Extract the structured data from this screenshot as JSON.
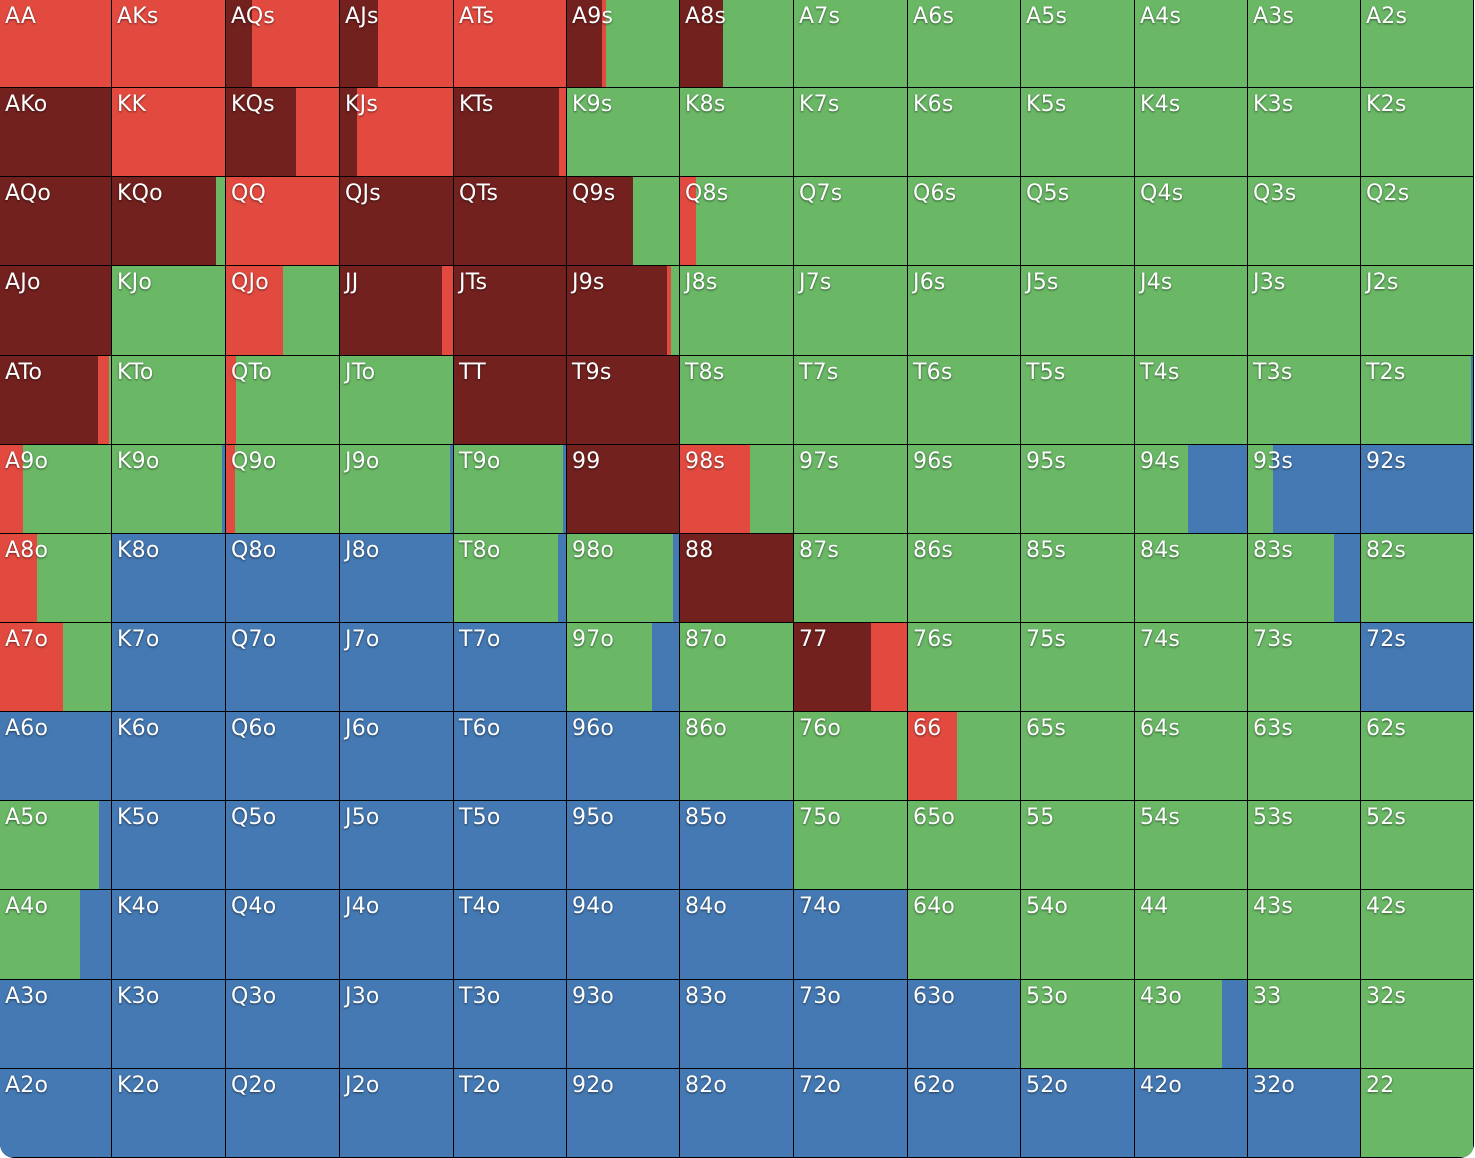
{
  "colors": {
    "raise": "#E24A40",
    "allin": "#73211F",
    "call": "#6AB866",
    "fold": "#4579B3"
  },
  "rows": [
    [
      {
        "hand": "AA",
        "mix": {
          "raise": 100
        }
      },
      {
        "hand": "AKs",
        "mix": {
          "raise": 100
        }
      },
      {
        "hand": "AQs",
        "mix": {
          "allin": 23,
          "raise": 77
        }
      },
      {
        "hand": "AJs",
        "mix": {
          "allin": 34,
          "raise": 66
        }
      },
      {
        "hand": "ATs",
        "mix": {
          "raise": 100
        }
      },
      {
        "hand": "A9s",
        "mix": {
          "allin": 31,
          "raise": 4,
          "call": 65
        }
      },
      {
        "hand": "A8s",
        "mix": {
          "allin": 38,
          "call": 62
        }
      },
      {
        "hand": "A7s",
        "mix": {
          "call": 100
        }
      },
      {
        "hand": "A6s",
        "mix": {
          "call": 100
        }
      },
      {
        "hand": "A5s",
        "mix": {
          "call": 100
        }
      },
      {
        "hand": "A4s",
        "mix": {
          "call": 100
        }
      },
      {
        "hand": "A3s",
        "mix": {
          "call": 100
        }
      },
      {
        "hand": "A2s",
        "mix": {
          "call": 100
        }
      }
    ],
    [
      {
        "hand": "AKo",
        "mix": {
          "allin": 100
        }
      },
      {
        "hand": "KK",
        "mix": {
          "raise": 100
        }
      },
      {
        "hand": "KQs",
        "mix": {
          "allin": 62,
          "raise": 38
        }
      },
      {
        "hand": "KJs",
        "mix": {
          "allin": 15,
          "raise": 85
        }
      },
      {
        "hand": "KTs",
        "mix": {
          "allin": 94,
          "raise": 6
        }
      },
      {
        "hand": "K9s",
        "mix": {
          "call": 100
        }
      },
      {
        "hand": "K8s",
        "mix": {
          "call": 100
        }
      },
      {
        "hand": "K7s",
        "mix": {
          "call": 100
        }
      },
      {
        "hand": "K6s",
        "mix": {
          "call": 100
        }
      },
      {
        "hand": "K5s",
        "mix": {
          "call": 100
        }
      },
      {
        "hand": "K4s",
        "mix": {
          "call": 100
        }
      },
      {
        "hand": "K3s",
        "mix": {
          "call": 100
        }
      },
      {
        "hand": "K2s",
        "mix": {
          "call": 100
        }
      }
    ],
    [
      {
        "hand": "AQo",
        "mix": {
          "allin": 100
        }
      },
      {
        "hand": "KQo",
        "mix": {
          "allin": 92,
          "call": 8
        }
      },
      {
        "hand": "QQ",
        "mix": {
          "raise": 100
        }
      },
      {
        "hand": "QJs",
        "mix": {
          "allin": 100
        }
      },
      {
        "hand": "QTs",
        "mix": {
          "allin": 100
        }
      },
      {
        "hand": "Q9s",
        "mix": {
          "allin": 59,
          "call": 41
        }
      },
      {
        "hand": "Q8s",
        "mix": {
          "raise": 14,
          "call": 86
        }
      },
      {
        "hand": "Q7s",
        "mix": {
          "call": 100
        }
      },
      {
        "hand": "Q6s",
        "mix": {
          "call": 100
        }
      },
      {
        "hand": "Q5s",
        "mix": {
          "call": 100
        }
      },
      {
        "hand": "Q4s",
        "mix": {
          "call": 100
        }
      },
      {
        "hand": "Q3s",
        "mix": {
          "call": 100
        }
      },
      {
        "hand": "Q2s",
        "mix": {
          "call": 100
        }
      }
    ],
    [
      {
        "hand": "AJo",
        "mix": {
          "allin": 100
        }
      },
      {
        "hand": "KJo",
        "mix": {
          "call": 100
        }
      },
      {
        "hand": "QJo",
        "mix": {
          "raise": 50,
          "call": 50
        }
      },
      {
        "hand": "JJ",
        "mix": {
          "allin": 90,
          "raise": 10
        }
      },
      {
        "hand": "JTs",
        "mix": {
          "allin": 100
        }
      },
      {
        "hand": "J9s",
        "mix": {
          "allin": 89,
          "raise": 4,
          "call": 7
        }
      },
      {
        "hand": "J8s",
        "mix": {
          "call": 100
        }
      },
      {
        "hand": "J7s",
        "mix": {
          "call": 100
        }
      },
      {
        "hand": "J6s",
        "mix": {
          "call": 100
        }
      },
      {
        "hand": "J5s",
        "mix": {
          "call": 100
        }
      },
      {
        "hand": "J4s",
        "mix": {
          "call": 100
        }
      },
      {
        "hand": "J3s",
        "mix": {
          "call": 100
        }
      },
      {
        "hand": "J2s",
        "mix": {
          "call": 100
        }
      }
    ],
    [
      {
        "hand": "ATo",
        "mix": {
          "allin": 88,
          "raise": 10,
          "call": 2
        }
      },
      {
        "hand": "KTo",
        "mix": {
          "call": 100
        }
      },
      {
        "hand": "QTo",
        "mix": {
          "raise": 9,
          "call": 91
        }
      },
      {
        "hand": "JTo",
        "mix": {
          "call": 100
        }
      },
      {
        "hand": "TT",
        "mix": {
          "allin": 100
        }
      },
      {
        "hand": "T9s",
        "mix": {
          "allin": 100
        }
      },
      {
        "hand": "T8s",
        "mix": {
          "call": 100
        }
      },
      {
        "hand": "T7s",
        "mix": {
          "call": 100
        }
      },
      {
        "hand": "T6s",
        "mix": {
          "call": 100
        }
      },
      {
        "hand": "T5s",
        "mix": {
          "call": 100
        }
      },
      {
        "hand": "T4s",
        "mix": {
          "call": 100
        }
      },
      {
        "hand": "T3s",
        "mix": {
          "call": 100
        }
      },
      {
        "hand": "T2s",
        "mix": {
          "call": 98,
          "fold": 2
        }
      }
    ],
    [
      {
        "hand": "A9o",
        "mix": {
          "raise": 21,
          "call": 79
        }
      },
      {
        "hand": "K9o",
        "mix": {
          "call": 97,
          "fold": 3
        }
      },
      {
        "hand": "Q9o",
        "mix": {
          "raise": 8,
          "call": 92
        }
      },
      {
        "hand": "J9o",
        "mix": {
          "call": 97,
          "fold": 3
        }
      },
      {
        "hand": "T9o",
        "mix": {
          "fold": 3,
          "call": 97
        }
      },
      {
        "hand": "99",
        "mix": {
          "allin": 100
        }
      },
      {
        "hand": "98s",
        "mix": {
          "raise": 62,
          "call": 38
        }
      },
      {
        "hand": "97s",
        "mix": {
          "call": 100
        }
      },
      {
        "hand": "96s",
        "mix": {
          "call": 100
        }
      },
      {
        "hand": "95s",
        "mix": {
          "call": 100
        }
      },
      {
        "hand": "94s",
        "mix": {
          "call": 47,
          "fold": 53
        }
      },
      {
        "hand": "93s",
        "mix": {
          "call": 22,
          "fold": 78
        }
      },
      {
        "hand": "92s",
        "mix": {
          "fold": 100
        }
      }
    ],
    [
      {
        "hand": "A8o",
        "mix": {
          "raise": 33,
          "call": 67
        }
      },
      {
        "hand": "K8o",
        "mix": {
          "fold": 100
        }
      },
      {
        "hand": "Q8o",
        "mix": {
          "fold": 100
        }
      },
      {
        "hand": "J8o",
        "mix": {
          "fold": 100
        }
      },
      {
        "hand": "T8o",
        "mix": {
          "call": 93,
          "fold": 7
        }
      },
      {
        "hand": "98o",
        "mix": {
          "fold": 5,
          "call": 95
        }
      },
      {
        "hand": "88",
        "mix": {
          "allin": 100
        }
      },
      {
        "hand": "87s",
        "mix": {
          "call": 100
        }
      },
      {
        "hand": "86s",
        "mix": {
          "call": 100
        }
      },
      {
        "hand": "85s",
        "mix": {
          "call": 100
        }
      },
      {
        "hand": "84s",
        "mix": {
          "call": 100
        }
      },
      {
        "hand": "83s",
        "mix": {
          "call": 77,
          "fold": 23
        }
      },
      {
        "hand": "82s",
        "mix": {
          "call": 100
        }
      }
    ],
    [
      {
        "hand": "A7o",
        "mix": {
          "raise": 57,
          "call": 43
        }
      },
      {
        "hand": "K7o",
        "mix": {
          "fold": 100
        }
      },
      {
        "hand": "Q7o",
        "mix": {
          "fold": 100
        }
      },
      {
        "hand": "J7o",
        "mix": {
          "fold": 100
        }
      },
      {
        "hand": "T7o",
        "mix": {
          "fold": 100
        }
      },
      {
        "hand": "97o",
        "mix": {
          "call": 76,
          "fold": 24
        }
      },
      {
        "hand": "87o",
        "mix": {
          "call": 100
        }
      },
      {
        "hand": "77",
        "mix": {
          "allin": 68,
          "raise": 32
        }
      },
      {
        "hand": "76s",
        "mix": {
          "call": 100
        }
      },
      {
        "hand": "75s",
        "mix": {
          "call": 100
        }
      },
      {
        "hand": "74s",
        "mix": {
          "call": 100
        }
      },
      {
        "hand": "73s",
        "mix": {
          "call": 100
        }
      },
      {
        "hand": "72s",
        "mix": {
          "fold": 100
        }
      }
    ],
    [
      {
        "hand": "A6o",
        "mix": {
          "fold": 100
        }
      },
      {
        "hand": "K6o",
        "mix": {
          "fold": 100
        }
      },
      {
        "hand": "Q6o",
        "mix": {
          "fold": 100
        }
      },
      {
        "hand": "J6o",
        "mix": {
          "fold": 100
        }
      },
      {
        "hand": "T6o",
        "mix": {
          "fold": 100
        }
      },
      {
        "hand": "96o",
        "mix": {
          "fold": 100
        }
      },
      {
        "hand": "86o",
        "mix": {
          "call": 100
        }
      },
      {
        "hand": "76o",
        "mix": {
          "call": 100
        }
      },
      {
        "hand": "66",
        "mix": {
          "raise": 44,
          "call": 56
        }
      },
      {
        "hand": "65s",
        "mix": {
          "call": 100
        }
      },
      {
        "hand": "64s",
        "mix": {
          "call": 100
        }
      },
      {
        "hand": "63s",
        "mix": {
          "call": 100
        }
      },
      {
        "hand": "62s",
        "mix": {
          "call": 100
        }
      }
    ],
    [
      {
        "hand": "A5o",
        "mix": {
          "call": 89,
          "fold": 11
        }
      },
      {
        "hand": "K5o",
        "mix": {
          "fold": 100
        }
      },
      {
        "hand": "Q5o",
        "mix": {
          "fold": 100
        }
      },
      {
        "hand": "J5o",
        "mix": {
          "fold": 100
        }
      },
      {
        "hand": "T5o",
        "mix": {
          "fold": 100
        }
      },
      {
        "hand": "95o",
        "mix": {
          "fold": 100
        }
      },
      {
        "hand": "85o",
        "mix": {
          "fold": 100
        }
      },
      {
        "hand": "75o",
        "mix": {
          "call": 100
        }
      },
      {
        "hand": "65o",
        "mix": {
          "call": 100
        }
      },
      {
        "hand": "55",
        "mix": {
          "call": 100
        }
      },
      {
        "hand": "54s",
        "mix": {
          "call": 100
        }
      },
      {
        "hand": "53s",
        "mix": {
          "call": 100
        }
      },
      {
        "hand": "52s",
        "mix": {
          "call": 100
        }
      }
    ],
    [
      {
        "hand": "A4o",
        "mix": {
          "call": 72,
          "fold": 28
        }
      },
      {
        "hand": "K4o",
        "mix": {
          "fold": 100
        }
      },
      {
        "hand": "Q4o",
        "mix": {
          "fold": 100
        }
      },
      {
        "hand": "J4o",
        "mix": {
          "fold": 100
        }
      },
      {
        "hand": "T4o",
        "mix": {
          "fold": 100
        }
      },
      {
        "hand": "94o",
        "mix": {
          "fold": 100
        }
      },
      {
        "hand": "84o",
        "mix": {
          "fold": 100
        }
      },
      {
        "hand": "74o",
        "mix": {
          "fold": 100
        }
      },
      {
        "hand": "64o",
        "mix": {
          "call": 100
        }
      },
      {
        "hand": "54o",
        "mix": {
          "call": 100
        }
      },
      {
        "hand": "44",
        "mix": {
          "call": 100
        }
      },
      {
        "hand": "43s",
        "mix": {
          "call": 100
        }
      },
      {
        "hand": "42s",
        "mix": {
          "call": 100
        }
      }
    ],
    [
      {
        "hand": "A3o",
        "mix": {
          "fold": 100
        }
      },
      {
        "hand": "K3o",
        "mix": {
          "fold": 100
        }
      },
      {
        "hand": "Q3o",
        "mix": {
          "fold": 100
        }
      },
      {
        "hand": "J3o",
        "mix": {
          "fold": 100
        }
      },
      {
        "hand": "T3o",
        "mix": {
          "fold": 100
        }
      },
      {
        "hand": "93o",
        "mix": {
          "fold": 100
        }
      },
      {
        "hand": "83o",
        "mix": {
          "fold": 100
        }
      },
      {
        "hand": "73o",
        "mix": {
          "fold": 100
        }
      },
      {
        "hand": "63o",
        "mix": {
          "fold": 100
        }
      },
      {
        "hand": "53o",
        "mix": {
          "call": 100
        }
      },
      {
        "hand": "43o",
        "mix": {
          "call": 78,
          "fold": 22
        }
      },
      {
        "hand": "33",
        "mix": {
          "call": 100
        }
      },
      {
        "hand": "32s",
        "mix": {
          "call": 100
        }
      }
    ],
    [
      {
        "hand": "A2o",
        "mix": {
          "fold": 100
        }
      },
      {
        "hand": "K2o",
        "mix": {
          "fold": 100
        }
      },
      {
        "hand": "Q2o",
        "mix": {
          "fold": 100
        }
      },
      {
        "hand": "J2o",
        "mix": {
          "fold": 100
        }
      },
      {
        "hand": "T2o",
        "mix": {
          "fold": 100
        }
      },
      {
        "hand": "92o",
        "mix": {
          "fold": 100
        }
      },
      {
        "hand": "82o",
        "mix": {
          "fold": 100
        }
      },
      {
        "hand": "72o",
        "mix": {
          "fold": 100
        }
      },
      {
        "hand": "62o",
        "mix": {
          "fold": 100
        }
      },
      {
        "hand": "52o",
        "mix": {
          "fold": 100
        }
      },
      {
        "hand": "42o",
        "mix": {
          "fold": 100
        }
      },
      {
        "hand": "32o",
        "mix": {
          "fold": 100
        }
      },
      {
        "hand": "22",
        "mix": {
          "call": 100
        }
      }
    ]
  ]
}
